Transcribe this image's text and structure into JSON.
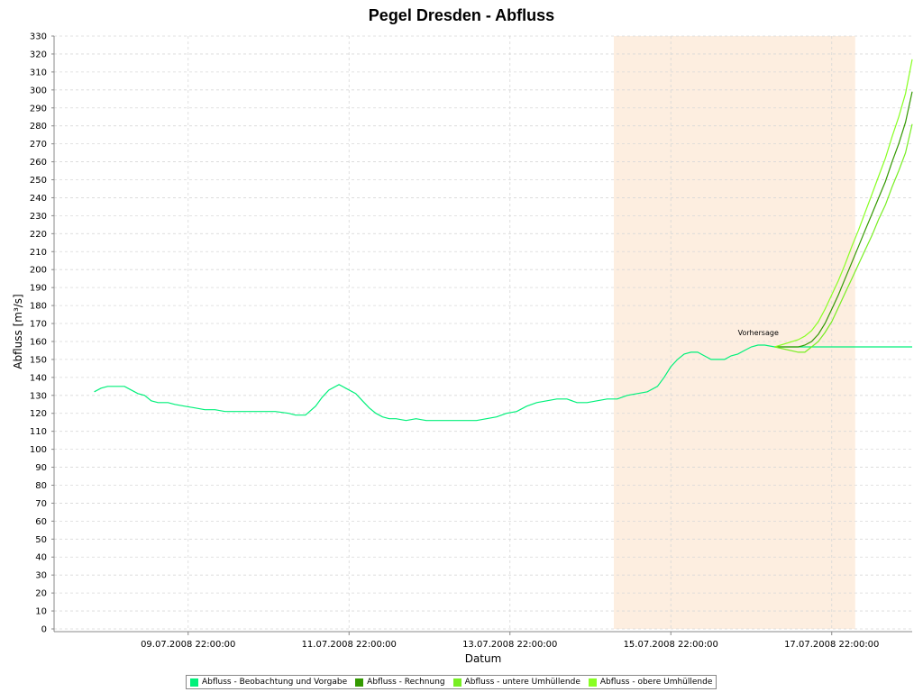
{
  "chart_data": {
    "type": "line",
    "title": "Pegel Dresden - Abfluss",
    "xlabel": "Datum",
    "ylabel": "Abfluss [m³/s]",
    "ylim": [
      0,
      330
    ],
    "ytick_step": 10,
    "xlim": [
      "2008-07-08T06:00",
      "2008-07-18T22:00"
    ],
    "x_ticks": [
      {
        "x": "2008-07-09T22:00",
        "label": "09.07.2008 22:00:00"
      },
      {
        "x": "2008-07-11T22:00",
        "label": "11.07.2008 22:00:00"
      },
      {
        "x": "2008-07-13T22:00",
        "label": "13.07.2008 22:00:00"
      },
      {
        "x": "2008-07-15T22:00",
        "label": "15.07.2008 22:00:00"
      },
      {
        "x": "2008-07-17T22:00",
        "label": "17.07.2008 22:00:00"
      }
    ],
    "grid": true,
    "legend_position": "bottom",
    "forecast_region": {
      "start": "2008-07-15T05:00",
      "end": "2008-07-18T05:00",
      "color": "#fdeee0"
    },
    "annotation": {
      "text": "Vorhersage",
      "x": "2008-07-16T18:00",
      "y": 165
    },
    "series": [
      {
        "name": "Abfluss - Beobachtung und Vorgabe",
        "color": "#00f07a",
        "points": [
          [
            "2008-07-08T18:00",
            132
          ],
          [
            "2008-07-08T20:00",
            134
          ],
          [
            "2008-07-08T22:00",
            135
          ],
          [
            "2008-07-09T00:00",
            135
          ],
          [
            "2008-07-09T03:00",
            135
          ],
          [
            "2008-07-09T05:00",
            133
          ],
          [
            "2008-07-09T07:00",
            131
          ],
          [
            "2008-07-09T09:00",
            130
          ],
          [
            "2008-07-09T11:00",
            127
          ],
          [
            "2008-07-09T13:00",
            126
          ],
          [
            "2008-07-09T16:00",
            126
          ],
          [
            "2008-07-09T18:00",
            125
          ],
          [
            "2008-07-09T21:00",
            124
          ],
          [
            "2008-07-10T00:00",
            123
          ],
          [
            "2008-07-10T03:00",
            122
          ],
          [
            "2008-07-10T06:00",
            122
          ],
          [
            "2008-07-10T09:00",
            121
          ],
          [
            "2008-07-10T16:00",
            121
          ],
          [
            "2008-07-11T00:00",
            121
          ],
          [
            "2008-07-11T04:00",
            120
          ],
          [
            "2008-07-11T06:00",
            119
          ],
          [
            "2008-07-11T09:00",
            119
          ],
          [
            "2008-07-11T12:00",
            124
          ],
          [
            "2008-07-11T14:00",
            129
          ],
          [
            "2008-07-11T16:00",
            133
          ],
          [
            "2008-07-11T19:00",
            136
          ],
          [
            "2008-07-11T21:00",
            134
          ],
          [
            "2008-07-12T00:00",
            131
          ],
          [
            "2008-07-12T02:00",
            127
          ],
          [
            "2008-07-12T04:00",
            123
          ],
          [
            "2008-07-12T06:00",
            120
          ],
          [
            "2008-07-12T08:00",
            118
          ],
          [
            "2008-07-12T10:00",
            117
          ],
          [
            "2008-07-12T12:00",
            117
          ],
          [
            "2008-07-12T15:00",
            116
          ],
          [
            "2008-07-12T18:00",
            117
          ],
          [
            "2008-07-12T21:00",
            116
          ],
          [
            "2008-07-13T00:00",
            116
          ],
          [
            "2008-07-13T06:00",
            116
          ],
          [
            "2008-07-13T12:00",
            116
          ],
          [
            "2008-07-13T15:00",
            117
          ],
          [
            "2008-07-13T18:00",
            118
          ],
          [
            "2008-07-13T21:00",
            120
          ],
          [
            "2008-07-14T00:00",
            121
          ],
          [
            "2008-07-14T03:00",
            124
          ],
          [
            "2008-07-14T06:00",
            126
          ],
          [
            "2008-07-14T09:00",
            127
          ],
          [
            "2008-07-14T12:00",
            128
          ],
          [
            "2008-07-14T15:00",
            128
          ],
          [
            "2008-07-14T18:00",
            126
          ],
          [
            "2008-07-14T21:00",
            126
          ],
          [
            "2008-07-15T00:00",
            127
          ],
          [
            "2008-07-15T03:00",
            128
          ],
          [
            "2008-07-15T06:00",
            128
          ],
          [
            "2008-07-15T09:00",
            130
          ],
          [
            "2008-07-15T12:00",
            131
          ],
          [
            "2008-07-15T15:00",
            132
          ],
          [
            "2008-07-15T18:00",
            135
          ],
          [
            "2008-07-15T20:00",
            140
          ],
          [
            "2008-07-15T22:00",
            146
          ],
          [
            "2008-07-16T00:00",
            150
          ],
          [
            "2008-07-16T02:00",
            153
          ],
          [
            "2008-07-16T04:00",
            154
          ],
          [
            "2008-07-16T06:00",
            154
          ],
          [
            "2008-07-16T08:00",
            152
          ],
          [
            "2008-07-16T10:00",
            150
          ],
          [
            "2008-07-16T12:00",
            150
          ],
          [
            "2008-07-16T14:00",
            150
          ],
          [
            "2008-07-16T16:00",
            152
          ],
          [
            "2008-07-16T18:00",
            153
          ],
          [
            "2008-07-16T20:00",
            155
          ],
          [
            "2008-07-16T22:00",
            157
          ],
          [
            "2008-07-17T00:00",
            158
          ],
          [
            "2008-07-17T02:00",
            158
          ],
          [
            "2008-07-17T05:00",
            157
          ],
          [
            "2008-07-18T22:00",
            157
          ]
        ]
      },
      {
        "name": "Abfluss - Rechnung",
        "color": "#339900",
        "points": [
          [
            "2008-07-17T05:00",
            157
          ],
          [
            "2008-07-17T12:00",
            157
          ],
          [
            "2008-07-17T14:00",
            158
          ],
          [
            "2008-07-17T16:00",
            160
          ],
          [
            "2008-07-17T18:00",
            164
          ],
          [
            "2008-07-17T20:00",
            170
          ],
          [
            "2008-07-17T22:00",
            178
          ],
          [
            "2008-07-18T00:00",
            186
          ],
          [
            "2008-07-18T02:00",
            195
          ],
          [
            "2008-07-18T04:00",
            204
          ],
          [
            "2008-07-18T06:00",
            213
          ],
          [
            "2008-07-18T08:00",
            222
          ],
          [
            "2008-07-18T10:00",
            231
          ],
          [
            "2008-07-18T12:00",
            240
          ],
          [
            "2008-07-18T14:00",
            249
          ],
          [
            "2008-07-18T16:00",
            260
          ],
          [
            "2008-07-18T18:00",
            270
          ],
          [
            "2008-07-18T20:00",
            282
          ],
          [
            "2008-07-18T22:00",
            299
          ]
        ]
      },
      {
        "name": "Abfluss - untere Umhüllende",
        "color": "#77ee22",
        "points": [
          [
            "2008-07-17T05:00",
            157
          ],
          [
            "2008-07-17T12:00",
            154
          ],
          [
            "2008-07-17T14:00",
            154
          ],
          [
            "2008-07-17T16:00",
            157
          ],
          [
            "2008-07-17T18:00",
            160
          ],
          [
            "2008-07-17T20:00",
            165
          ],
          [
            "2008-07-17T22:00",
            171
          ],
          [
            "2008-07-18T00:00",
            179
          ],
          [
            "2008-07-18T02:00",
            187
          ],
          [
            "2008-07-18T04:00",
            195
          ],
          [
            "2008-07-18T06:00",
            203
          ],
          [
            "2008-07-18T08:00",
            211
          ],
          [
            "2008-07-18T10:00",
            219
          ],
          [
            "2008-07-18T12:00",
            228
          ],
          [
            "2008-07-18T14:00",
            236
          ],
          [
            "2008-07-18T16:00",
            246
          ],
          [
            "2008-07-18T18:00",
            255
          ],
          [
            "2008-07-18T20:00",
            265
          ],
          [
            "2008-07-18T22:00",
            281
          ]
        ]
      },
      {
        "name": "Abfluss - obere Umhüllende",
        "color": "#88ff22",
        "points": [
          [
            "2008-07-17T05:00",
            157
          ],
          [
            "2008-07-17T12:00",
            161
          ],
          [
            "2008-07-17T14:00",
            163
          ],
          [
            "2008-07-17T16:00",
            166
          ],
          [
            "2008-07-17T18:00",
            171
          ],
          [
            "2008-07-17T20:00",
            178
          ],
          [
            "2008-07-17T22:00",
            186
          ],
          [
            "2008-07-18T00:00",
            194
          ],
          [
            "2008-07-18T02:00",
            203
          ],
          [
            "2008-07-18T04:00",
            213
          ],
          [
            "2008-07-18T06:00",
            222
          ],
          [
            "2008-07-18T08:00",
            232
          ],
          [
            "2008-07-18T10:00",
            242
          ],
          [
            "2008-07-18T12:00",
            252
          ],
          [
            "2008-07-18T14:00",
            262
          ],
          [
            "2008-07-18T16:00",
            274
          ],
          [
            "2008-07-18T18:00",
            285
          ],
          [
            "2008-07-18T20:00",
            298
          ],
          [
            "2008-07-18T22:00",
            317
          ]
        ]
      }
    ]
  }
}
